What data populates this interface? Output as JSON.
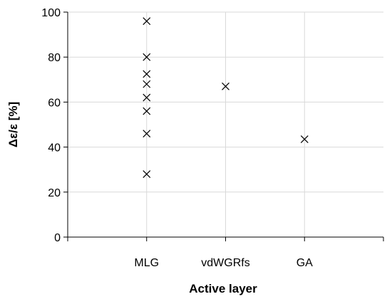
{
  "chart_data": {
    "type": "scatter",
    "title": "",
    "xlabel": "Active layer",
    "ylabel": "Δε/ε [%]",
    "categories": [
      "MLG",
      "vdWGRfs",
      "GA"
    ],
    "ylim": [
      0,
      100
    ],
    "yticks": [
      0,
      20,
      40,
      60,
      80,
      100
    ],
    "grid": true,
    "legend": "none",
    "marker": "x",
    "colors": {
      "marker": "#000000",
      "grid": "#d9d9d9",
      "axis": "#000000"
    },
    "series": [
      {
        "points": [
          {
            "category": "MLG",
            "y": 96
          },
          {
            "category": "MLG",
            "y": 80
          },
          {
            "category": "MLG",
            "y": 72.5
          },
          {
            "category": "MLG",
            "y": 68
          },
          {
            "category": "MLG",
            "y": 62
          },
          {
            "category": "MLG",
            "y": 56
          },
          {
            "category": "MLG",
            "y": 46
          },
          {
            "category": "MLG",
            "y": 28
          },
          {
            "category": "vdWGRfs",
            "y": 67
          },
          {
            "category": "GA",
            "y": 43.5
          }
        ]
      }
    ]
  }
}
